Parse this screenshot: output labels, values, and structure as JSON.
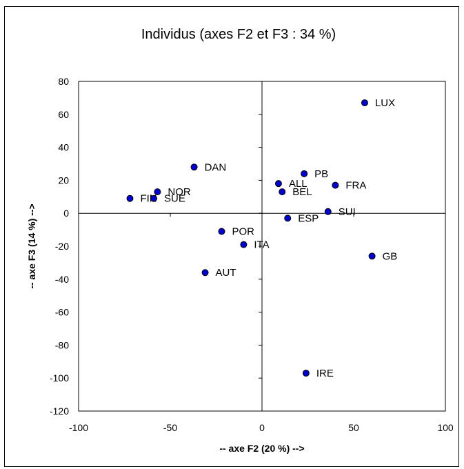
{
  "chart_data": {
    "type": "scatter",
    "title": "Individus (axes F2 et F3 : 34 %)",
    "xlabel": "-- axe F2 (20 %) -->",
    "ylabel": "-- axe F3 (14 %) -->",
    "xlim": [
      -100,
      100
    ],
    "ylim": [
      -120,
      80
    ],
    "xticks": [
      -100,
      -50,
      0,
      50,
      100
    ],
    "yticks": [
      80,
      60,
      40,
      20,
      0,
      -20,
      -40,
      -60,
      -80,
      -100,
      -120
    ],
    "grid": false,
    "legend": "none",
    "marker_color": "#0000cc",
    "points": [
      {
        "label": "LUX",
        "x": 56,
        "y": 67
      },
      {
        "label": "DAN",
        "x": -37,
        "y": 28
      },
      {
        "label": "PB",
        "x": 23,
        "y": 24
      },
      {
        "label": "ALL",
        "x": 9,
        "y": 18
      },
      {
        "label": "FRA",
        "x": 40,
        "y": 17
      },
      {
        "label": "NOR",
        "x": -57,
        "y": 13
      },
      {
        "label": "BEL",
        "x": 11,
        "y": 13
      },
      {
        "label": "FIN",
        "x": -72,
        "y": 9
      },
      {
        "label": "SUE",
        "x": -59,
        "y": 9
      },
      {
        "label": "SUI",
        "x": 36,
        "y": 1
      },
      {
        "label": "ESP",
        "x": 14,
        "y": -3
      },
      {
        "label": "POR",
        "x": -22,
        "y": -11
      },
      {
        "label": "ITA",
        "x": -10,
        "y": -19
      },
      {
        "label": "GB",
        "x": 60,
        "y": -26
      },
      {
        "label": "AUT",
        "x": -31,
        "y": -36
      },
      {
        "label": "IRE",
        "x": 24,
        "y": -97
      }
    ]
  }
}
